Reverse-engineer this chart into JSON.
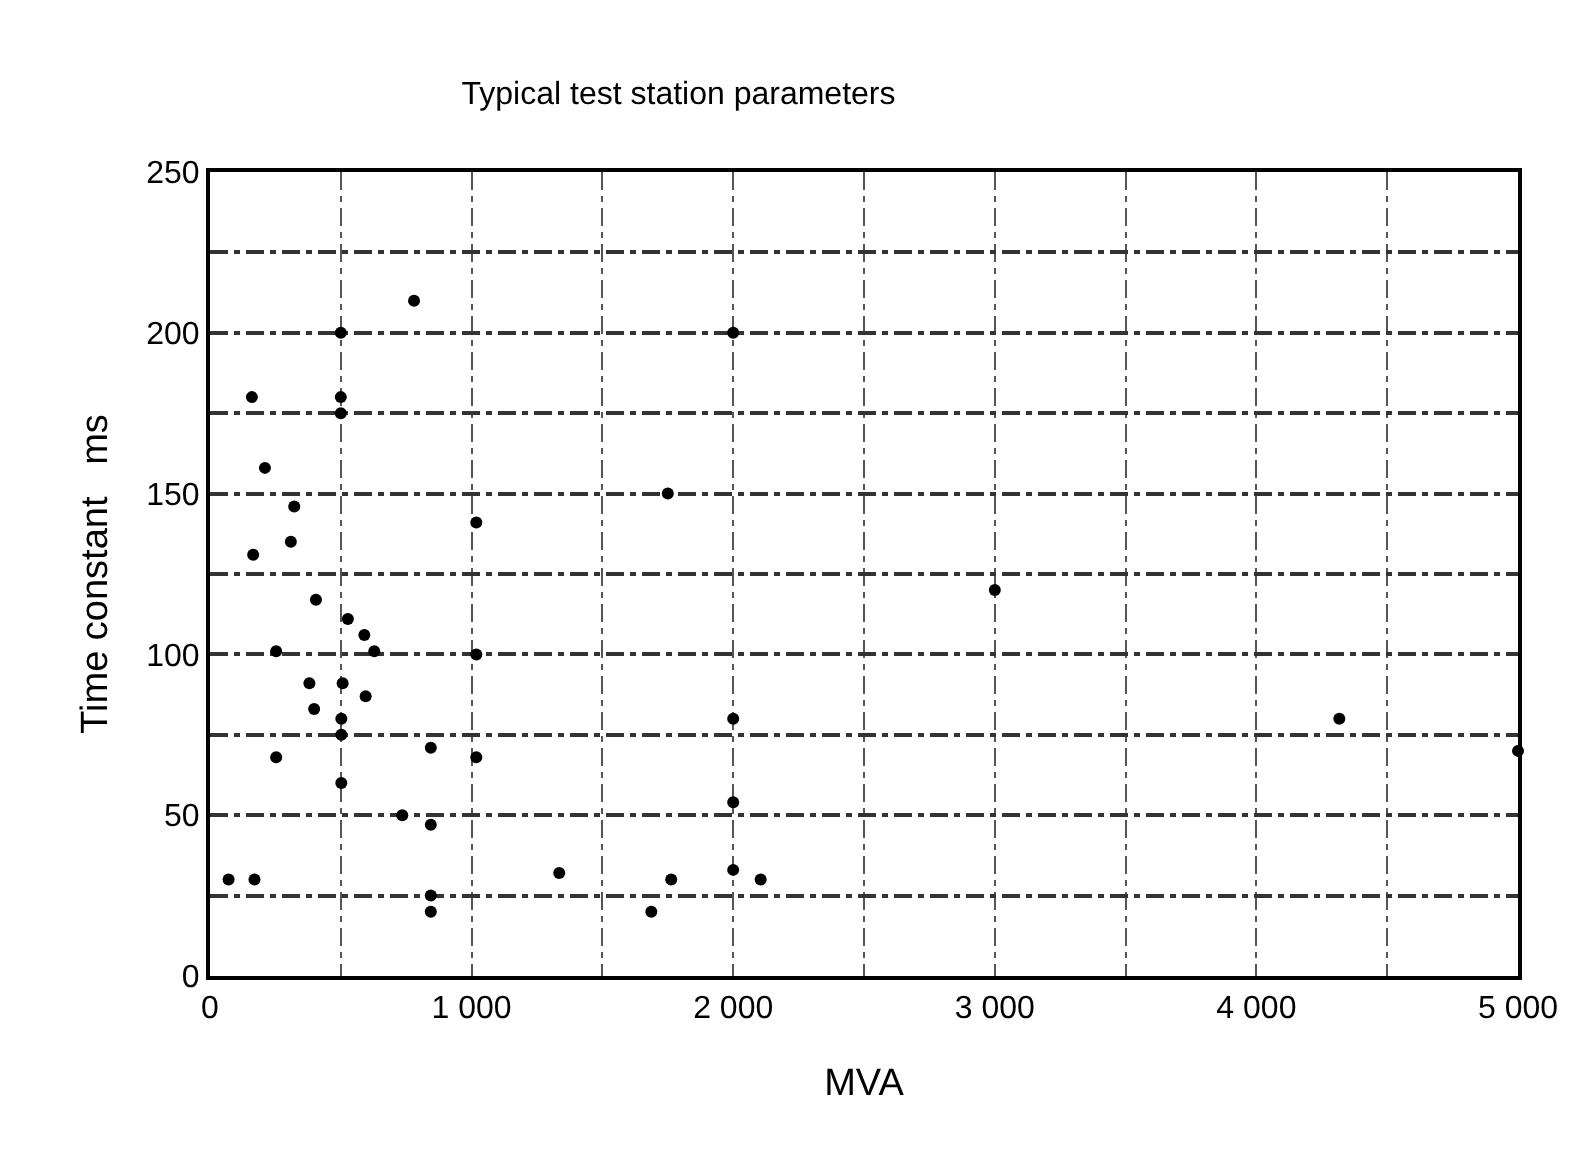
{
  "chart_data": {
    "type": "scatter",
    "title": "Typical test station parameters",
    "xlabel": "MVA",
    "ylabel": "Time constant   ms",
    "x": [
      780,
      500,
      2000,
      160,
      500,
      500,
      210,
      322,
      1018,
      1750,
      309,
      165,
      3000,
      405,
      527,
      590,
      253,
      628,
      1018,
      380,
      507,
      595,
      398,
      502,
      2000,
      4317,
      502,
      844,
      253,
      1018,
      5000,
      502,
      735,
      844,
      2000,
      71,
      170,
      1335,
      1763,
      2000,
      2105,
      844,
      844,
      1687
    ],
    "series": [
      {
        "color": "#000000",
        "values": [
          210,
          200,
          200,
          180,
          180,
          175,
          158,
          146,
          141,
          150,
          135,
          131,
          120,
          117,
          111,
          106,
          101,
          101,
          100,
          91,
          91,
          87,
          83,
          80,
          80,
          80,
          75,
          71,
          68,
          68,
          70,
          60,
          50,
          47,
          54,
          30,
          30,
          32,
          30,
          33,
          30,
          25,
          20,
          20
        ]
      }
    ],
    "xlim": [
      0,
      5000
    ],
    "xticks": [
      0,
      {
        "value": 500,
        "label": null
      },
      {
        "value": 1000,
        "label": "1 000"
      },
      {
        "value": 1500,
        "label": null
      },
      {
        "value": 2000,
        "label": "2 000"
      },
      {
        "value": 2500,
        "label": null
      },
      {
        "value": 3000,
        "label": "3 000"
      },
      {
        "value": 3500,
        "label": null
      },
      {
        "value": 4000,
        "label": "4 000"
      },
      {
        "value": 4500,
        "label": null
      },
      {
        "value": 5000,
        "label": "5 000"
      }
    ],
    "ylim": [
      0,
      250
    ],
    "yticks": [
      0,
      {
        "value": 25,
        "label": null
      },
      50,
      {
        "value": 75,
        "label": null
      },
      100,
      {
        "value": 125,
        "label": null
      },
      150,
      {
        "value": 175,
        "label": null
      },
      200,
      {
        "value": 225,
        "label": null
      },
      250
    ],
    "grid": true,
    "marker": "circle"
  }
}
